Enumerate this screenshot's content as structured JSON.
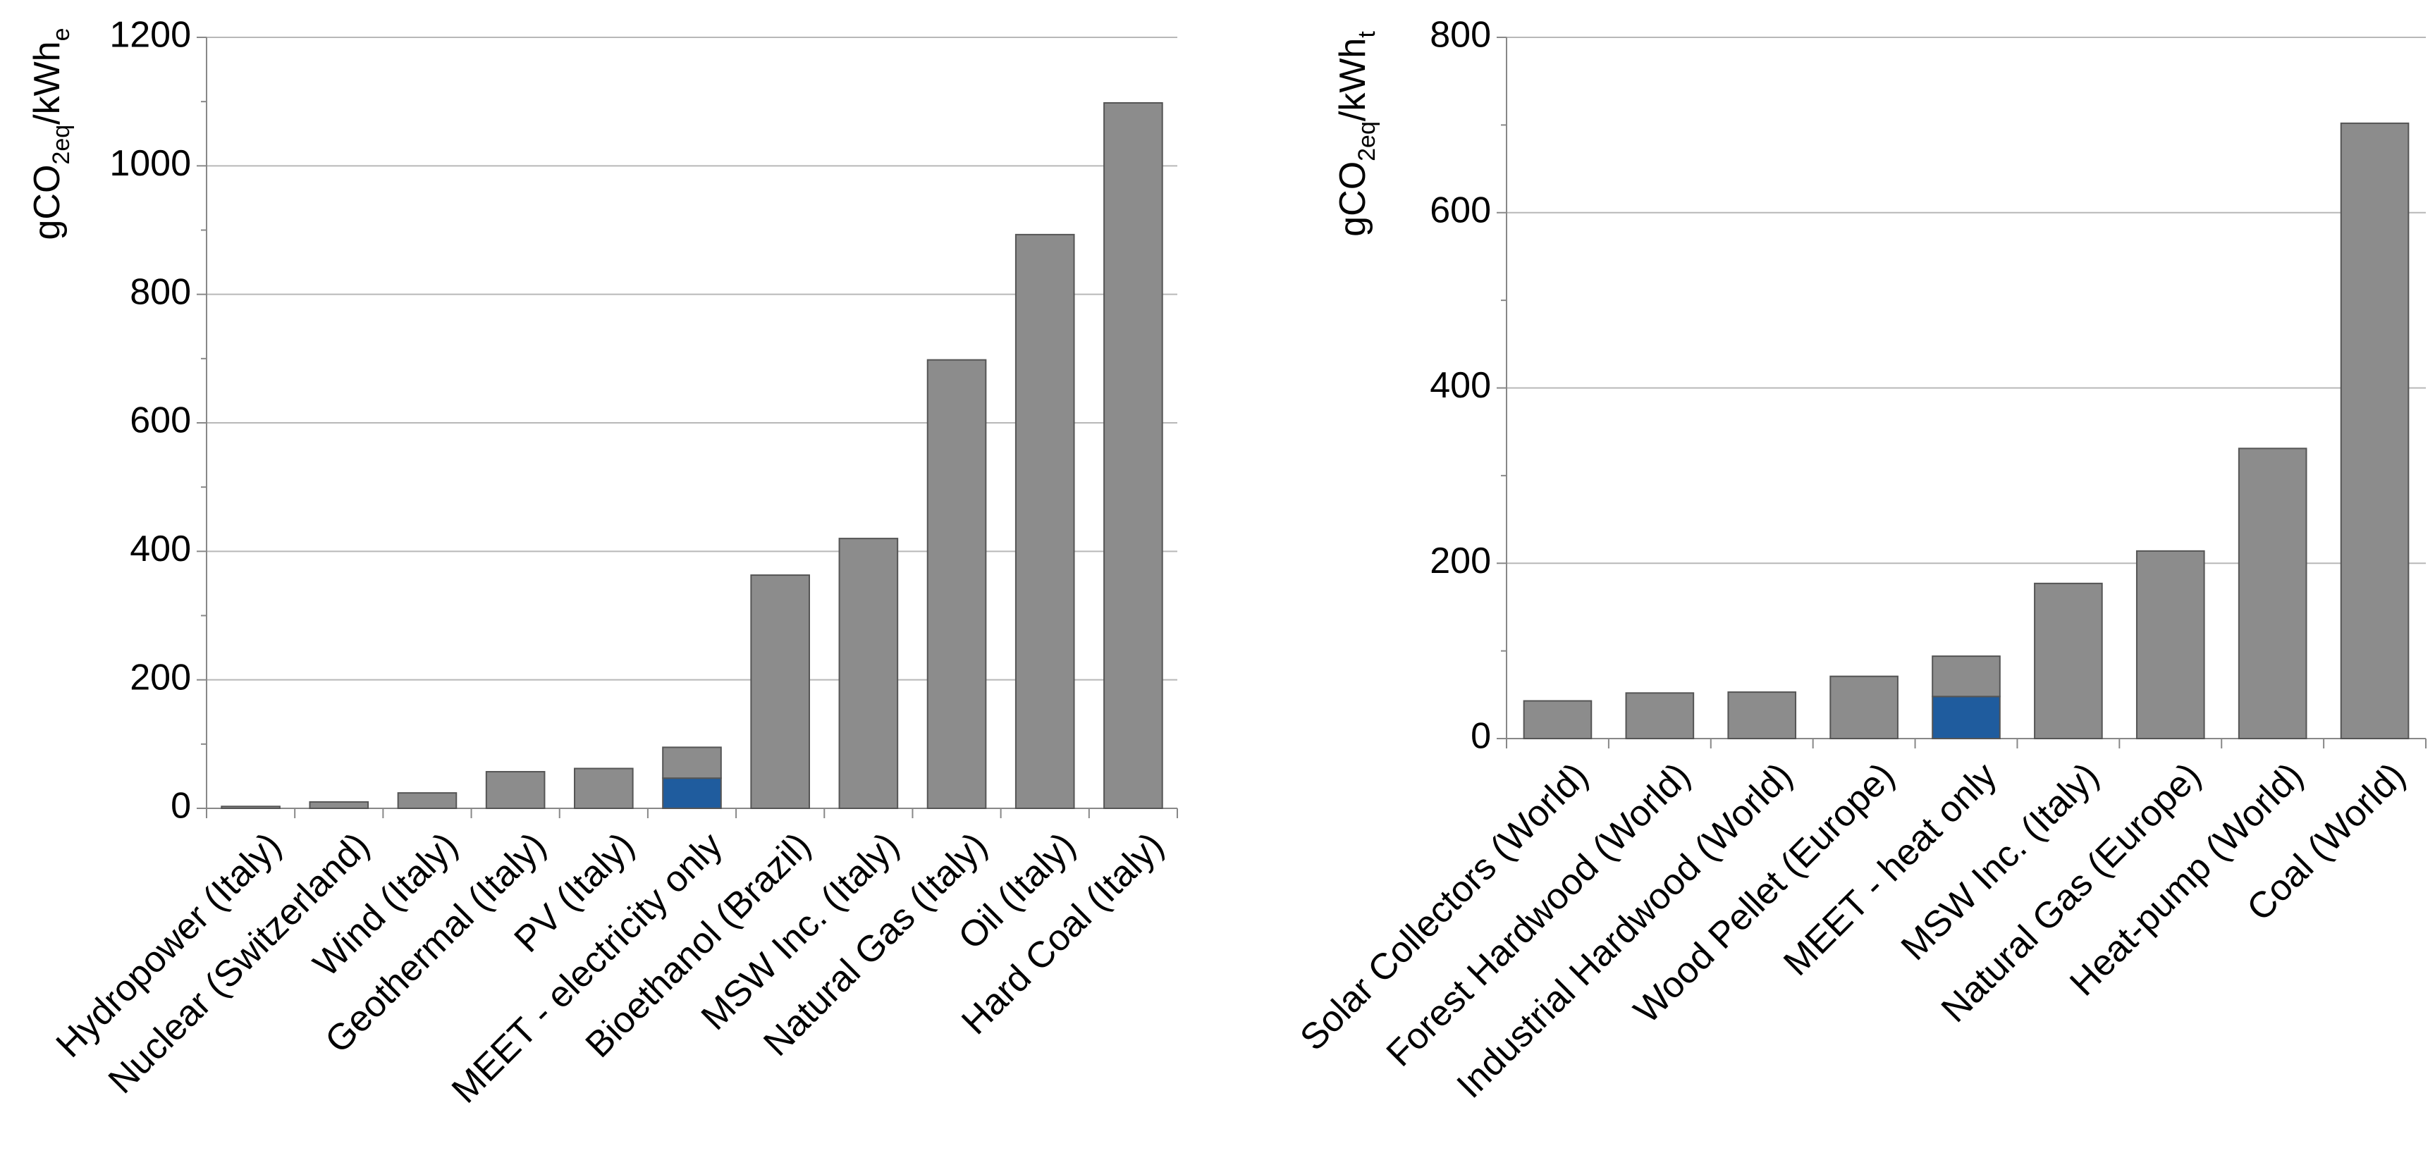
{
  "chart_data": [
    {
      "type": "stacked_bar",
      "ylabel": [
        {
          "text": "gCO"
        },
        {
          "text": "2eq",
          "sub": true
        },
        {
          "text": "/kWh"
        },
        {
          "text": "e",
          "sub": true
        }
      ],
      "categories": [
        "Hydropower (Italy)",
        "Nuclear (Switzerland)",
        "Wind (Italy)",
        "Geothermal (Italy)",
        "PV (Italy)",
        "MEET - electricity only",
        "Bioethanol (Brazil)",
        "MSW Inc. (Italy)",
        "Natural Gas (Italy)",
        "Oil (Italy)",
        "Hard Coal (Italy)"
      ],
      "series": [
        {
          "color": "#1f5c9e",
          "values": [
            null,
            null,
            null,
            null,
            null,
            47,
            null,
            null,
            null,
            null,
            null
          ]
        },
        {
          "color": "#8c8c8c",
          "values": [
            3,
            10,
            24,
            57,
            62,
            48,
            363,
            420,
            698,
            893,
            1098
          ]
        }
      ],
      "ylim": [
        0,
        1200
      ],
      "yticks": [
        0,
        200,
        400,
        600,
        800,
        1000,
        1200
      ],
      "yminorticks": [
        100,
        300,
        500,
        700,
        900,
        1100
      ],
      "grid": true
    },
    {
      "type": "stacked_bar",
      "ylabel": [
        {
          "text": "gCO"
        },
        {
          "text": "2eq",
          "sub": true
        },
        {
          "text": "/kWh"
        },
        {
          "text": "t",
          "sub": true
        }
      ],
      "categories": [
        "Solar Collectors (World)",
        "Forest Hardwood (World)",
        "Industrial Hardwood (World)",
        "Wood Pellet (Europe)",
        "MEET - heat only",
        "MSW Inc. (Italy)",
        "Natural Gas (Europe)",
        "Heat-pump (World)",
        "Coal (World)"
      ],
      "series": [
        {
          "color": "#1f5c9e",
          "values": [
            null,
            null,
            null,
            null,
            48,
            null,
            null,
            null,
            null
          ]
        },
        {
          "color": "#8c8c8c",
          "values": [
            43,
            52,
            53,
            71,
            46,
            177,
            214,
            331,
            702
          ]
        }
      ],
      "ylim": [
        0,
        800
      ],
      "yticks": [
        0,
        200,
        400,
        600,
        800
      ],
      "yminorticks": [
        100,
        300,
        500,
        700
      ],
      "grid": true
    }
  ]
}
